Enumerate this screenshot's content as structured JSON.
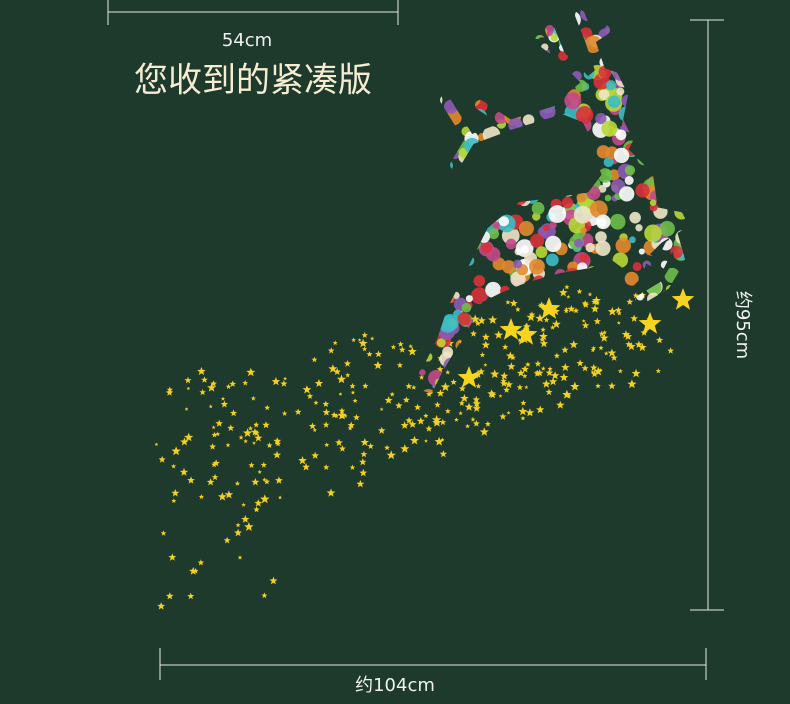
{
  "top_width": "54cm",
  "title": "您收到的紧凑版",
  "height_label": "约95cm",
  "width_label": "约104cm"
}
